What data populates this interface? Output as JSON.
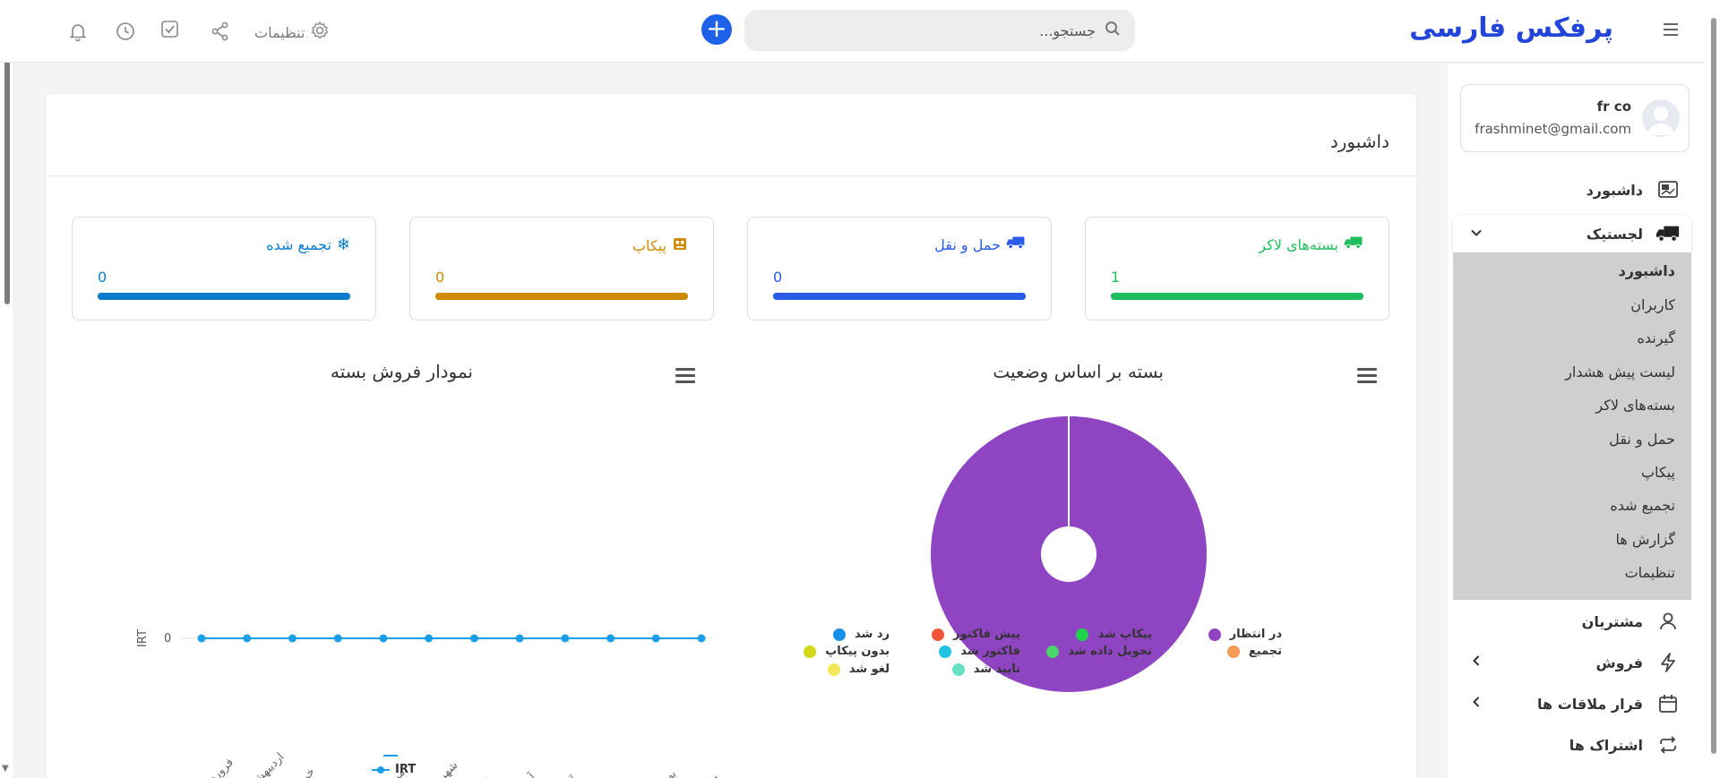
{
  "header": {
    "brand": "پرفکس فارسی",
    "search_placeholder": "جستجو...",
    "settings_label": "تنظیمات"
  },
  "profile": {
    "name": "fr co",
    "email": "frashminet@gmail.com"
  },
  "sidebar": {
    "dashboard": "داشبورد",
    "logistics": "لجستیک",
    "sub_items": [
      "داشبورد",
      "کاربران",
      "گیرنده",
      "لیست پیش هشدار",
      "بسته‌های لاکر",
      "حمل و نقل",
      "پیکاپ",
      "تجمیع شده",
      "گزارش ها",
      "تنظیمات"
    ],
    "customers": "مشتریان",
    "sales": "فروش",
    "appointments": "قرار ملاقات ها",
    "subscriptions": "اشتراک ها"
  },
  "main": {
    "title": "داشبورد"
  },
  "stats": [
    {
      "label": "بسته‌های لاکر",
      "value": "1",
      "color": "#1fbe5c",
      "fill": 1.0
    },
    {
      "label": "حمل و نقل",
      "value": "0",
      "color": "#2a5ae8",
      "fill": 1.0
    },
    {
      "label": "پیکاپ",
      "value": "0",
      "color": "#d08a00",
      "fill": 1.0
    },
    {
      "label": "تجمیع شده",
      "value": "0",
      "color": "#0a7ccc",
      "fill": 1.0
    }
  ],
  "chart_data": [
    {
      "type": "line",
      "title": "نمودار فروش بسته",
      "ylabel": "IRT",
      "categories": [
        "فروردین",
        "اردیبهشت",
        "خرداد",
        "تیر",
        "مرداد",
        "شهریور",
        "مهر",
        "آبان",
        "آذر",
        "دی",
        "بهمن",
        "اسفند"
      ],
      "series": [
        {
          "name": "IRT",
          "values": [
            0,
            0,
            0,
            0,
            0,
            0,
            0,
            0,
            0,
            0,
            0,
            0
          ],
          "color": "#1a9ee8"
        }
      ],
      "yticks": [
        "0"
      ],
      "grid": true,
      "legend": "bottom"
    },
    {
      "type": "pie",
      "title": "بسته بر اساس وضعیت",
      "slices": [
        {
          "label": "در انتظار",
          "value": 1,
          "color": "#8f44c1"
        },
        {
          "label": "پیکاپ شد",
          "value": 0,
          "color": "#1fd14b"
        },
        {
          "label": "پیش فاکتور",
          "value": 0,
          "color": "#f0553a"
        },
        {
          "label": "رد شد",
          "value": 0,
          "color": "#1a8fe8"
        },
        {
          "label": "تجمیع",
          "value": 0,
          "color": "#f79a55"
        },
        {
          "label": "تحویل داده شد",
          "value": 0,
          "color": "#4bd46a"
        },
        {
          "label": "فاکتور شد",
          "value": 0,
          "color": "#22c3e0"
        },
        {
          "label": "بدون پیکاپ",
          "value": 0,
          "color": "#d6d61a"
        },
        {
          "label": "تایید شد",
          "value": 0,
          "color": "#66e0c0"
        },
        {
          "label": "لغو شد",
          "value": 0,
          "color": "#f2e85a"
        }
      ],
      "legend": "bottom"
    }
  ]
}
